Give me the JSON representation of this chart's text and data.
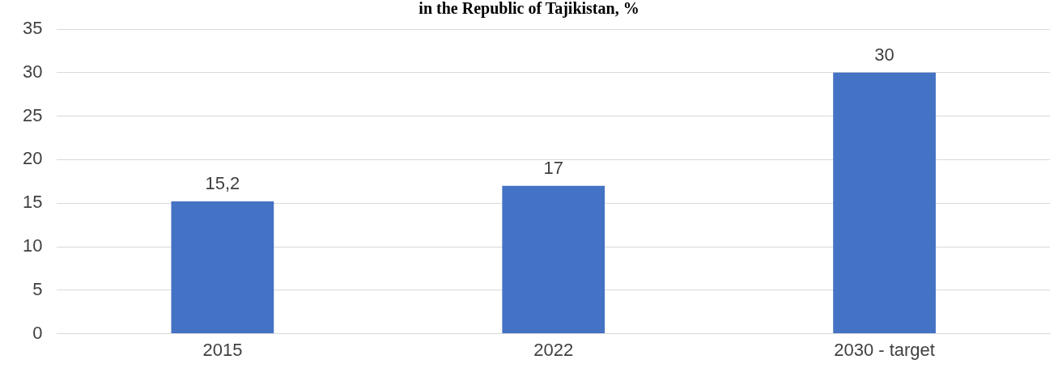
{
  "chart_data": {
    "type": "bar",
    "title": "in the Republic of Tajikistan, %",
    "categories": [
      "2015",
      "2022",
      "2030 - target"
    ],
    "values": [
      15.2,
      17,
      30
    ],
    "color": "#4472c4",
    "value_labels": [
      "15,2",
      "17",
      "30"
    ],
    "ylim": [
      0,
      35
    ],
    "yticks": [
      0,
      5,
      10,
      15,
      20,
      25,
      30,
      35
    ],
    "grid": "y"
  }
}
